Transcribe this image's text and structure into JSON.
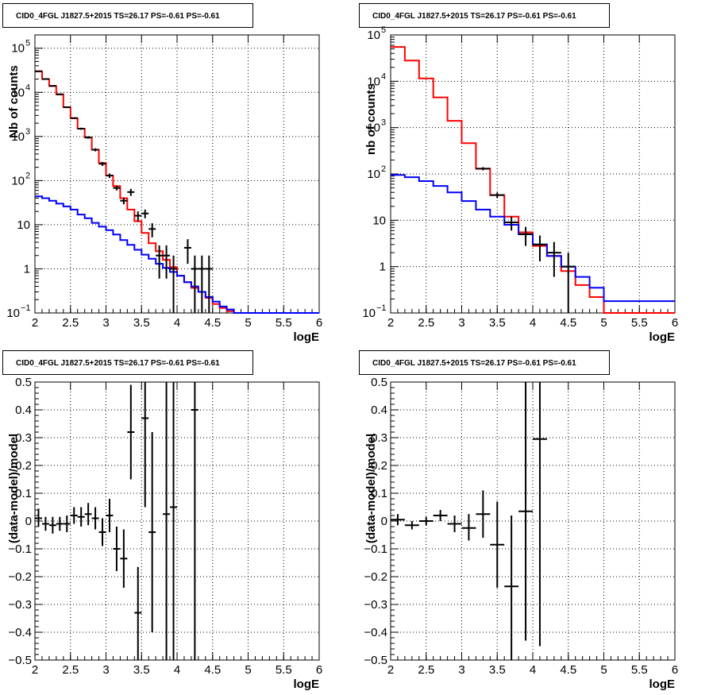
{
  "chart_data": [
    {
      "type": "line",
      "panel": "top-left",
      "title": "CID0_4FGL J1827.5+2015 TS=26.17 PS=-0.61 PS=-0.61",
      "xlabel": "logE",
      "ylabel": "Nb of counts",
      "xlim": [
        2,
        6
      ],
      "ylim": [
        0.1,
        200000
      ],
      "yscale": "log",
      "grid": true,
      "x_ticks": [
        "2",
        "2.5",
        "3",
        "3.5",
        "4",
        "4.5",
        "5",
        "5.5",
        "6"
      ],
      "y_ticks": [
        {
          "value": 0.1,
          "base": "10",
          "exp": "−1"
        },
        {
          "value": 1,
          "base": "1",
          "exp": ""
        },
        {
          "value": 10,
          "base": "10",
          "exp": ""
        },
        {
          "value": 100,
          "base": "10",
          "exp": "2"
        },
        {
          "value": 1000,
          "base": "10",
          "exp": "3"
        },
        {
          "value": 10000,
          "base": "10",
          "exp": "4"
        },
        {
          "value": 100000,
          "base": "10",
          "exp": "5"
        }
      ],
      "series": [
        {
          "role": "model_total",
          "color": "#ff0000",
          "bin_edges": [
            2,
            2.1,
            2.2,
            2.3,
            2.4,
            2.5,
            2.6,
            2.7,
            2.8,
            2.9,
            3.0,
            3.1,
            3.2,
            3.3,
            3.4,
            3.5,
            3.6,
            3.7,
            3.8,
            3.9,
            4.0,
            4.1,
            4.2,
            4.3,
            4.4,
            4.5,
            4.6,
            4.7,
            4.8,
            4.9,
            5.0,
            5.1,
            6.0
          ],
          "values": [
            30000,
            20000,
            14000,
            9000,
            4600,
            2600,
            1500,
            950,
            500,
            250,
            130,
            75,
            40,
            22,
            12,
            6.5,
            3.8,
            2.5,
            1.6,
            1.1,
            0.7,
            0.5,
            0.37,
            0.3,
            0.22,
            0.16,
            0.13,
            0.11,
            0.1,
            0.1,
            0.1,
            0.1
          ]
        },
        {
          "role": "background",
          "color": "#0000ff",
          "bin_edges": [
            2,
            2.1,
            2.2,
            2.3,
            2.4,
            2.5,
            2.6,
            2.7,
            2.8,
            2.9,
            3.0,
            3.1,
            3.2,
            3.3,
            3.4,
            3.5,
            3.6,
            3.7,
            3.8,
            3.9,
            4.0,
            4.1,
            4.2,
            4.3,
            4.4,
            4.5,
            4.6,
            4.7,
            4.8,
            4.9,
            5.0,
            5.1,
            6.0
          ],
          "values": [
            44,
            40,
            35,
            30,
            26,
            22,
            17,
            14,
            11,
            9,
            7.5,
            6.0,
            4.5,
            3.5,
            2.7,
            2.1,
            1.7,
            1.3,
            1.05,
            0.85,
            0.7,
            0.5,
            0.4,
            0.3,
            0.23,
            0.18,
            0.14,
            0.12,
            0.1,
            0.1,
            0.1,
            0.1
          ]
        }
      ],
      "data_points": [
        {
          "x": 2.05,
          "y": 30000,
          "lo": 29000,
          "hi": 31000
        },
        {
          "x": 2.15,
          "y": 20000,
          "lo": 19500,
          "hi": 20500
        },
        {
          "x": 2.25,
          "y": 14000,
          "lo": 13600,
          "hi": 14400
        },
        {
          "x": 2.35,
          "y": 9000,
          "lo": 8700,
          "hi": 9300
        },
        {
          "x": 2.45,
          "y": 4600,
          "lo": 4400,
          "hi": 4800
        },
        {
          "x": 2.55,
          "y": 2600,
          "lo": 2500,
          "hi": 2700
        },
        {
          "x": 2.65,
          "y": 1500,
          "lo": 1420,
          "hi": 1580
        },
        {
          "x": 2.75,
          "y": 950,
          "lo": 890,
          "hi": 1010
        },
        {
          "x": 2.85,
          "y": 500,
          "lo": 460,
          "hi": 540
        },
        {
          "x": 2.95,
          "y": 240,
          "lo": 215,
          "hi": 265
        },
        {
          "x": 3.05,
          "y": 130,
          "lo": 115,
          "hi": 145
        },
        {
          "x": 3.15,
          "y": 68,
          "lo": 60,
          "hi": 76
        },
        {
          "x": 3.25,
          "y": 35,
          "lo": 29,
          "hi": 41
        },
        {
          "x": 3.35,
          "y": 55,
          "lo": 45,
          "hi": 65
        },
        {
          "x": 3.45,
          "y": 16,
          "lo": 12,
          "hi": 20
        },
        {
          "x": 3.55,
          "y": 18,
          "lo": 14,
          "hi": 22
        },
        {
          "x": 3.65,
          "y": 8,
          "lo": 5.2,
          "hi": 10.8
        },
        {
          "x": 3.75,
          "y": 2,
          "lo": 0.6,
          "hi": 3.4
        },
        {
          "x": 3.85,
          "y": 2,
          "lo": 0.6,
          "hi": 3.4
        },
        {
          "x": 3.95,
          "y": 1,
          "lo": 0.1,
          "hi": 2.0
        },
        {
          "x": 4.15,
          "y": 3,
          "lo": 1.3,
          "hi": 4.7
        },
        {
          "x": 4.25,
          "y": 1,
          "lo": 0.1,
          "hi": 2.0
        },
        {
          "x": 4.35,
          "y": 1,
          "lo": 0.1,
          "hi": 2.0
        },
        {
          "x": 4.45,
          "y": 1,
          "lo": 0.1,
          "hi": 2.0
        }
      ]
    },
    {
      "type": "line",
      "panel": "top-right",
      "title": "CID0_4FGL J1827.5+2015 TS=26.17 PS=-0.61 PS=-0.61",
      "xlabel": "logE",
      "ylabel": "nb of counts",
      "xlim": [
        2,
        6
      ],
      "ylim": [
        0.1,
        100000
      ],
      "yscale": "log",
      "grid": true,
      "x_ticks": [
        "2",
        "2.5",
        "3",
        "3.5",
        "4",
        "4.5",
        "5",
        "5.5",
        "6"
      ],
      "y_ticks": [
        {
          "value": 0.1,
          "base": "10",
          "exp": "−1"
        },
        {
          "value": 1,
          "base": "1",
          "exp": ""
        },
        {
          "value": 10,
          "base": "10",
          "exp": ""
        },
        {
          "value": 100,
          "base": "10",
          "exp": "2"
        },
        {
          "value": 1000,
          "base": "10",
          "exp": "3"
        },
        {
          "value": 10000,
          "base": "10",
          "exp": "4"
        },
        {
          "value": 100000,
          "base": "10",
          "exp": "5"
        }
      ],
      "series": [
        {
          "role": "model_total",
          "color": "#ff0000",
          "bin_edges": [
            2,
            2.2,
            2.4,
            2.6,
            2.8,
            3.0,
            3.2,
            3.4,
            3.6,
            3.8,
            4.0,
            4.2,
            4.4,
            4.6,
            4.8,
            5.0,
            6.0
          ],
          "values": [
            55000,
            28000,
            11500,
            4500,
            1400,
            460,
            130,
            35,
            12,
            5.5,
            2.8,
            1.7,
            0.8,
            0.4,
            0.22,
            0.1
          ]
        },
        {
          "role": "background",
          "color": "#0000ff",
          "bin_edges": [
            2,
            2.2,
            2.4,
            2.6,
            2.8,
            3.0,
            3.2,
            3.4,
            3.6,
            3.8,
            4.0,
            4.2,
            4.4,
            4.6,
            4.8,
            5.0,
            6.0
          ],
          "values": [
            95,
            85,
            70,
            55,
            40,
            26,
            17,
            12,
            8,
            5,
            3.0,
            1.7,
            1.0,
            0.6,
            0.35,
            0.18
          ]
        }
      ],
      "data_points": [
        {
          "x": 3.3,
          "y": 130,
          "lo": 120,
          "hi": 140
        },
        {
          "x": 3.5,
          "y": 35,
          "lo": 30,
          "hi": 40
        },
        {
          "x": 3.7,
          "y": 9,
          "lo": 6,
          "hi": 12
        },
        {
          "x": 3.9,
          "y": 5,
          "lo": 2.8,
          "hi": 7.2
        },
        {
          "x": 4.1,
          "y": 3,
          "lo": 1.3,
          "hi": 4.7
        },
        {
          "x": 4.3,
          "y": 2,
          "lo": 0.6,
          "hi": 3.4
        },
        {
          "x": 4.5,
          "y": 1,
          "lo": 0.1,
          "hi": 2.0
        }
      ]
    },
    {
      "type": "scatter",
      "panel": "bottom-left",
      "title": "CID0_4FGL J1827.5+2015 TS=26.17 PS=-0.61 PS=-0.61",
      "xlabel": "logE",
      "ylabel": "(data-model)/model",
      "xlim": [
        2,
        6
      ],
      "ylim": [
        -0.5,
        0.5
      ],
      "yscale": "linear",
      "grid": true,
      "x_ticks": [
        "2",
        "2.5",
        "3",
        "3.5",
        "4",
        "4.5",
        "5",
        "5.5",
        "6"
      ],
      "y_tick_values": [
        -0.5,
        -0.4,
        -0.3,
        -0.2,
        -0.1,
        0,
        0.1,
        0.2,
        0.3,
        0.4,
        0.5
      ],
      "y_tick_labels": [
        "−0.5",
        "−0.4",
        "−0.3",
        "−0.2",
        "−0.1",
        "0",
        "0.1",
        "0.2",
        "0.3",
        "0.4",
        "0.5"
      ],
      "data_points": [
        {
          "x": 2.05,
          "y": 0.01,
          "lo": -0.02,
          "hi": 0.045
        },
        {
          "x": 2.15,
          "y": -0.01,
          "lo": -0.035,
          "hi": 0.015
        },
        {
          "x": 2.25,
          "y": -0.015,
          "lo": -0.045,
          "hi": 0.015
        },
        {
          "x": 2.35,
          "y": -0.01,
          "lo": -0.035,
          "hi": 0.015
        },
        {
          "x": 2.45,
          "y": -0.01,
          "lo": -0.04,
          "hi": 0.02
        },
        {
          "x": 2.55,
          "y": 0.02,
          "lo": -0.01,
          "hi": 0.05
        },
        {
          "x": 2.65,
          "y": 0.015,
          "lo": -0.02,
          "hi": 0.05
        },
        {
          "x": 2.75,
          "y": 0.025,
          "lo": -0.015,
          "hi": 0.065
        },
        {
          "x": 2.85,
          "y": 0.01,
          "lo": -0.03,
          "hi": 0.05
        },
        {
          "x": 2.95,
          "y": -0.04,
          "lo": -0.09,
          "hi": 0.01
        },
        {
          "x": 3.05,
          "y": 0.02,
          "lo": -0.04,
          "hi": 0.08
        },
        {
          "x": 3.15,
          "y": -0.1,
          "lo": -0.18,
          "hi": -0.02
        },
        {
          "x": 3.25,
          "y": -0.135,
          "lo": -0.24,
          "hi": -0.03
        },
        {
          "x": 3.35,
          "y": 0.32,
          "lo": 0.15,
          "hi": 0.49
        },
        {
          "x": 3.45,
          "y": -0.33,
          "lo": -0.5,
          "hi": -0.165
        },
        {
          "x": 3.55,
          "y": 0.37,
          "lo": 0.05,
          "hi": 0.5
        },
        {
          "x": 3.65,
          "y": -0.04,
          "lo": -0.4,
          "hi": 0.32
        },
        {
          "x": 3.85,
          "y": 0.025,
          "lo": -0.5,
          "hi": 0.5
        },
        {
          "x": 3.95,
          "y": 0.05,
          "lo": -0.5,
          "hi": 0.5
        },
        {
          "x": 4.25,
          "y": 0.4,
          "lo": -0.5,
          "hi": 0.5
        }
      ]
    },
    {
      "type": "scatter",
      "panel": "bottom-right",
      "title": "CID0_4FGL J1827.5+2015 TS=26.17 PS=-0.61 PS=-0.61",
      "xlabel": "logE",
      "ylabel": "(data-model)/model",
      "xlim": [
        2,
        6
      ],
      "ylim": [
        -0.5,
        0.5
      ],
      "yscale": "linear",
      "grid": true,
      "x_ticks": [
        "2",
        "2.5",
        "3",
        "3.5",
        "4",
        "4.5",
        "5",
        "5.5",
        "6"
      ],
      "y_tick_values": [
        -0.5,
        -0.4,
        -0.3,
        -0.2,
        -0.1,
        0,
        0.1,
        0.2,
        0.3,
        0.4,
        0.5
      ],
      "y_tick_labels": [
        "−0.5",
        "−0.4",
        "−0.3",
        "−0.2",
        "−0.1",
        "0",
        "0.1",
        "0.2",
        "0.3",
        "0.4",
        "0.5"
      ],
      "data_points": [
        {
          "x": 2.1,
          "y": 0.005,
          "lo": -0.015,
          "hi": 0.025
        },
        {
          "x": 2.3,
          "y": -0.015,
          "lo": -0.03,
          "hi": 0.0
        },
        {
          "x": 2.5,
          "y": 0.0,
          "lo": -0.015,
          "hi": 0.015
        },
        {
          "x": 2.7,
          "y": 0.02,
          "lo": 0.0,
          "hi": 0.04
        },
        {
          "x": 2.9,
          "y": -0.01,
          "lo": -0.04,
          "hi": 0.02
        },
        {
          "x": 3.1,
          "y": -0.025,
          "lo": -0.07,
          "hi": 0.025
        },
        {
          "x": 3.3,
          "y": 0.025,
          "lo": -0.06,
          "hi": 0.11
        },
        {
          "x": 3.5,
          "y": -0.085,
          "lo": -0.24,
          "hi": 0.07
        },
        {
          "x": 3.7,
          "y": -0.235,
          "lo": -0.5,
          "hi": 0.02
        },
        {
          "x": 3.9,
          "y": 0.035,
          "lo": -0.43,
          "hi": 0.5
        },
        {
          "x": 4.1,
          "y": 0.295,
          "lo": -0.45,
          "hi": 0.5
        }
      ]
    }
  ]
}
